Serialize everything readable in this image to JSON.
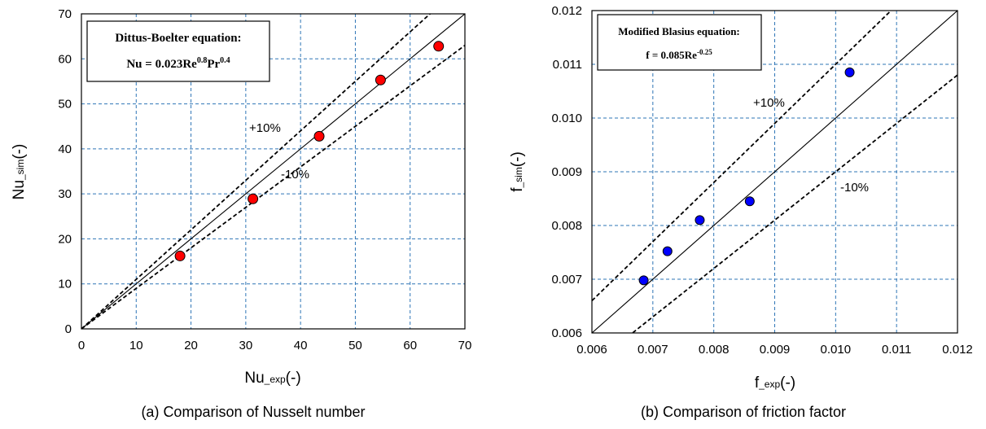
{
  "chart_data": [
    {
      "type": "scatter",
      "id": "a",
      "caption": "(a) Comparison of Nusselt number",
      "xlabel_main": "Nu",
      "xlabel_sub": "_exp",
      "xlabel_tail": "(-)",
      "ylabel_main": "Nu",
      "ylabel_sub": "_sim",
      "ylabel_tail": "(-)",
      "xlim": [
        0,
        70
      ],
      "ylim": [
        0,
        70
      ],
      "xticks": [
        0,
        10,
        20,
        30,
        40,
        50,
        60,
        70
      ],
      "yticks": [
        0,
        10,
        20,
        30,
        40,
        50,
        60,
        70
      ],
      "grid": true,
      "reference_lines": [
        "y = x",
        "+10%",
        "-10%"
      ],
      "band_labels": {
        "plus": "+10%",
        "minus": "-10%"
      },
      "annotation_box": {
        "line1": "Dittus-Boelter equation:",
        "line2_parts": [
          "Nu = 0.023Re",
          "0.8",
          "Pr",
          "0.4"
        ]
      },
      "marker_color": "#ff0000",
      "points": [
        {
          "x": 18.0,
          "y": 16.2
        },
        {
          "x": 31.3,
          "y": 28.9
        },
        {
          "x": 43.4,
          "y": 42.8
        },
        {
          "x": 54.6,
          "y": 55.3
        },
        {
          "x": 65.2,
          "y": 62.8
        }
      ]
    },
    {
      "type": "scatter",
      "id": "b",
      "caption": "(b) Comparison of friction factor",
      "xlabel_main": "f",
      "xlabel_sub": "_exp",
      "xlabel_tail": "(-)",
      "ylabel_main": "f",
      "ylabel_sub": "_sim",
      "ylabel_tail": "(-)",
      "xlim": [
        0.006,
        0.012
      ],
      "ylim": [
        0.006,
        0.012
      ],
      "xticks": [
        "0.006",
        "0.007",
        "0.008",
        "0.009",
        "0.010",
        "0.011",
        "0.012"
      ],
      "yticks": [
        "0.006",
        "0.007",
        "0.008",
        "0.009",
        "0.010",
        "0.011",
        "0.012"
      ],
      "grid": true,
      "reference_lines": [
        "y = x",
        "+10%",
        "-10%"
      ],
      "band_labels": {
        "plus": "+10%",
        "minus": "-10%"
      },
      "annotation_box": {
        "line1": "Modified Blasius equation:",
        "line2_parts": [
          "f = 0.085Re",
          "-0.25"
        ]
      },
      "marker_color": "#0000ff",
      "points": [
        {
          "x": 0.00685,
          "y": 0.00698
        },
        {
          "x": 0.00724,
          "y": 0.00752
        },
        {
          "x": 0.00777,
          "y": 0.0081
        },
        {
          "x": 0.00859,
          "y": 0.00845
        },
        {
          "x": 0.01023,
          "y": 0.01085
        }
      ]
    }
  ]
}
